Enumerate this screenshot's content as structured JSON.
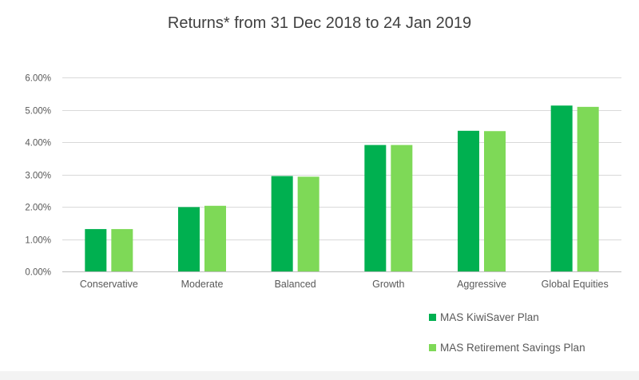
{
  "chart_data": {
    "type": "bar",
    "title": "Returns* from 31 Dec 2018 to 24 Jan 2019",
    "xlabel": "",
    "ylabel": "",
    "categories": [
      "Conservative",
      "Moderate",
      "Balanced",
      "Growth",
      "Aggressive",
      "Global Equities"
    ],
    "series": [
      {
        "name": "MAS KiwiSaver Plan",
        "values": [
          0.0131,
          0.0199,
          0.0295,
          0.0391,
          0.0435,
          0.0513
        ],
        "color": "#00b050"
      },
      {
        "name": "MAS Retirement Savings Plan",
        "values": [
          0.0131,
          0.0203,
          0.0293,
          0.0391,
          0.0434,
          0.0509
        ],
        "color": "#7ed957"
      }
    ],
    "ylim": [
      0,
      0.06
    ],
    "yticks": [
      0,
      0.01,
      0.02,
      0.03,
      0.04,
      0.05,
      0.06
    ],
    "ytick_labels": [
      "0.00%",
      "1.00%",
      "2.00%",
      "3.00%",
      "4.00%",
      "5.00%",
      "6.00%"
    ],
    "grid": true,
    "legend_position": "bottom-right"
  }
}
